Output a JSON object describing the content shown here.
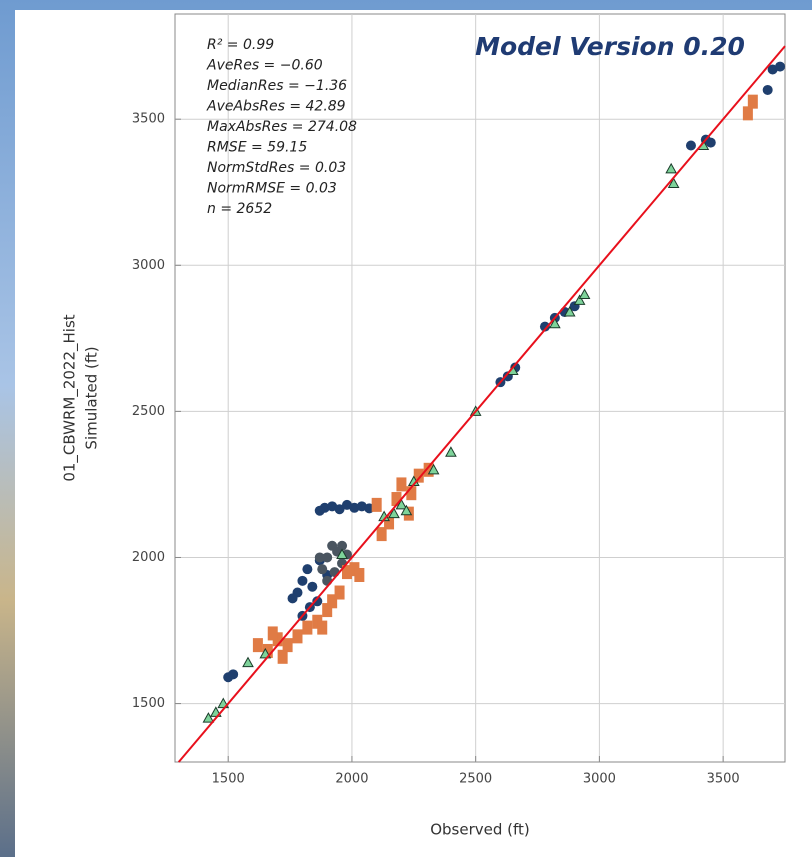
{
  "chart_data": {
    "type": "scatter",
    "title": "Model Version 0.20",
    "x_label": "Observed (ft)",
    "y_label": [
      "01_CBWRM_2022_Hist",
      "Simulated (ft)"
    ],
    "annotations": [
      "R² = 0.99",
      "AveRes = −0.60",
      "MedianRes = −1.36",
      "AveAbsRes = 42.89",
      "MaxAbsRes = 274.08",
      "RMSE = 59.15",
      "NormStdRes = 0.03",
      "NormRMSE = 0.03",
      "n = 2652"
    ],
    "xlim": [
      1285,
      3750
    ],
    "ylim": [
      1300,
      3860
    ],
    "xticks": [
      1500,
      2000,
      2500,
      3000,
      3500
    ],
    "yticks": [
      1500,
      2000,
      2500,
      3000,
      3500
    ],
    "grid": true,
    "identity_line": true,
    "identity_line_color": "#e8101c",
    "series": [
      {
        "color": "#1f3f6e",
        "marker": "circle",
        "x": [
          1890,
          1920,
          1950,
          1980,
          2010,
          2040,
          2070,
          1870,
          1780,
          1800,
          1820,
          1840,
          1860,
          1800,
          1830,
          1870,
          1900,
          1760,
          2600,
          2630,
          2660,
          2780,
          2820,
          2860,
          2900,
          3370,
          3430,
          3450,
          3680,
          3700,
          3730,
          1500,
          1520
        ],
        "y": [
          2170,
          2175,
          2165,
          2180,
          2170,
          2175,
          2168,
          2160,
          1880,
          1920,
          1960,
          1900,
          1850,
          1800,
          1830,
          1990,
          1940,
          1860,
          2600,
          2620,
          2650,
          2790,
          2820,
          2840,
          2860,
          3410,
          3430,
          3420,
          3600,
          3670,
          3680,
          1590,
          1600
        ]
      },
      {
        "color": "#4a5560",
        "marker": "circle",
        "x": [
          1880,
          1900,
          1920,
          1940,
          1960,
          1900,
          1930,
          1960,
          1980,
          1870
        ],
        "y": [
          1960,
          2000,
          2040,
          2020,
          1980,
          1920,
          1950,
          2040,
          2010,
          2000
        ]
      },
      {
        "color": "#e07b45",
        "marker": "square",
        "x": [
          1620,
          1660,
          1700,
          1740,
          1780,
          1820,
          1860,
          1880,
          1900,
          1920,
          1950,
          1980,
          2010,
          2030,
          1720,
          1680,
          2120,
          2150,
          2180,
          2200,
          2240,
          2230,
          2100,
          2270,
          2310,
          3600,
          3620
        ],
        "y": [
          1700,
          1680,
          1720,
          1700,
          1730,
          1760,
          1780,
          1760,
          1820,
          1850,
          1880,
          1950,
          1960,
          1940,
          1660,
          1740,
          2080,
          2120,
          2200,
          2250,
          2220,
          2150,
          2180,
          2280,
          2300,
          3520,
          3560
        ]
      },
      {
        "color": "#7ed39a",
        "marker": "triangle",
        "x": [
          1420,
          1450,
          1480,
          1580,
          1650,
          2130,
          2170,
          2200,
          2220,
          2250,
          2330,
          2400,
          2500,
          2650,
          2820,
          2880,
          2920,
          2940,
          3290,
          3300,
          3420,
          1960
        ],
        "y": [
          1450,
          1470,
          1500,
          1640,
          1670,
          2140,
          2150,
          2180,
          2160,
          2260,
          2300,
          2360,
          2500,
          2640,
          2800,
          2840,
          2880,
          2900,
          3330,
          3280,
          3410,
          2010
        ]
      }
    ]
  }
}
